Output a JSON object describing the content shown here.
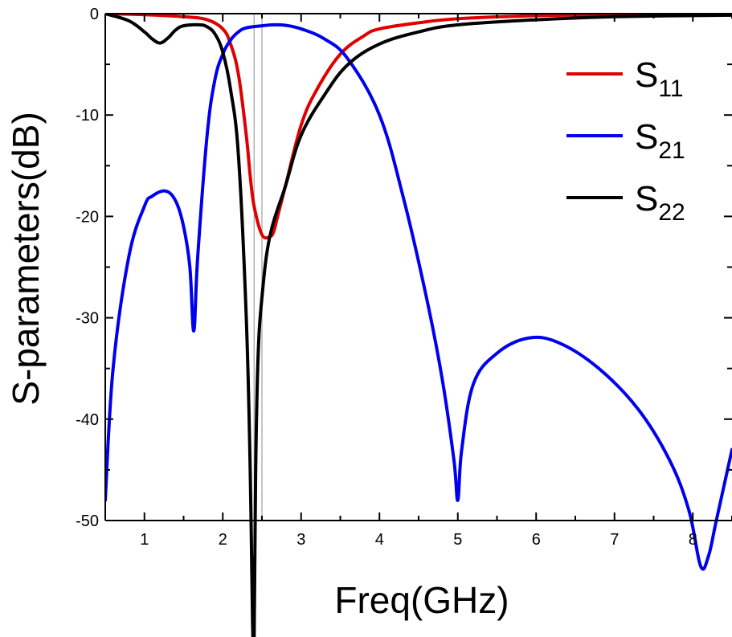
{
  "chart_data": {
    "type": "line",
    "title": "",
    "xlabel": "Freq(GHz)",
    "ylabel": "S-parameters(dB)",
    "xlim": [
      0.5,
      8.5
    ],
    "ylim": [
      -50,
      0
    ],
    "x_ticks": [
      1,
      2,
      3,
      4,
      5,
      6,
      7,
      8
    ],
    "x_tick_labels": [
      "1",
      "2",
      "3",
      "4",
      "5",
      "6",
      "7",
      "8"
    ],
    "y_ticks": [
      0,
      -10,
      -20,
      -30,
      -40,
      -50
    ],
    "y_tick_labels": [
      "0",
      "-10",
      "-20",
      "-30",
      "-40",
      "-50"
    ],
    "grid": false,
    "legend_position": "top-right",
    "reference_lines_x": [
      2.4,
      2.5
    ],
    "series": [
      {
        "name": "S11",
        "label_main": "S",
        "label_sub": "11",
        "color": "#e00000",
        "x": [
          0.5,
          1.0,
          1.5,
          1.8,
          2.0,
          2.1,
          2.2,
          2.3,
          2.35,
          2.4,
          2.5,
          2.6,
          2.65,
          2.7,
          2.8,
          3.0,
          3.2,
          3.5,
          3.8,
          4.0,
          4.5,
          5.0,
          6.0,
          7.0,
          8.5
        ],
        "y": [
          0,
          -0.1,
          -0.3,
          -0.6,
          -1.5,
          -3,
          -6,
          -12,
          -16,
          -19,
          -21.8,
          -22,
          -21.5,
          -20,
          -17,
          -11,
          -7.5,
          -4,
          -2.2,
          -1.5,
          -0.9,
          -0.5,
          -0.2,
          -0.1,
          -0.05
        ]
      },
      {
        "name": "S21",
        "label_main": "S",
        "label_sub": "21",
        "color": "#0000ee",
        "x": [
          0.5,
          0.6,
          0.8,
          1.0,
          1.1,
          1.27,
          1.4,
          1.5,
          1.58,
          1.63,
          1.68,
          1.8,
          1.9,
          2.0,
          2.1,
          2.2,
          2.3,
          2.5,
          2.65,
          2.8,
          3.0,
          3.3,
          3.6,
          4.0,
          4.3,
          4.6,
          4.8,
          4.95,
          5.0,
          5.05,
          5.2,
          5.5,
          5.9,
          6.3,
          6.8,
          7.3,
          7.7,
          7.95,
          8.1,
          8.2,
          8.3,
          8.5
        ],
        "y": [
          -48,
          -35,
          -24,
          -19,
          -18,
          -17.5,
          -18.5,
          -21,
          -25,
          -31.3,
          -24,
          -12,
          -6.5,
          -4,
          -2.6,
          -1.8,
          -1.4,
          -1.2,
          -1.1,
          -1.15,
          -1.5,
          -2.5,
          -4.5,
          -10,
          -18,
          -28,
          -36,
          -44,
          -48,
          -43,
          -36.5,
          -33.5,
          -32,
          -32.5,
          -35,
          -39,
          -44,
          -49,
          -54.5,
          -53.5,
          -50,
          -43
        ]
      },
      {
        "name": "S22",
        "label_main": "S",
        "label_sub": "22",
        "color": "#000000",
        "x": [
          0.5,
          0.8,
          1.0,
          1.1,
          1.2,
          1.3,
          1.4,
          1.5,
          1.7,
          1.8,
          1.9,
          2.0,
          2.1,
          2.2,
          2.3,
          2.35,
          2.38,
          2.4,
          2.42,
          2.45,
          2.5,
          2.6,
          2.8,
          3.0,
          3.3,
          3.6,
          4.0,
          4.5,
          5.0,
          6.0,
          7.0,
          8.5
        ],
        "y": [
          0,
          -0.7,
          -1.8,
          -2.5,
          -2.9,
          -2.4,
          -1.6,
          -1.2,
          -1.1,
          -1.3,
          -2.0,
          -3.8,
          -7.5,
          -14,
          -30,
          -45,
          -60,
          -62,
          -45,
          -34,
          -28,
          -22,
          -17,
          -12,
          -8,
          -5,
          -3,
          -1.8,
          -1.1,
          -0.6,
          -0.3,
          -0.15
        ]
      }
    ]
  }
}
